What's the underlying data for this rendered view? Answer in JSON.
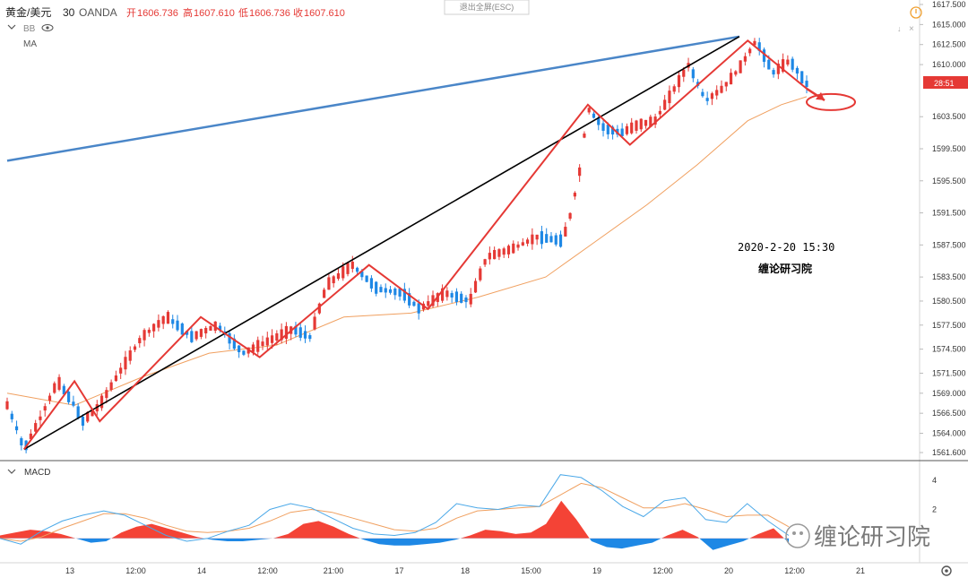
{
  "header": {
    "symbol": "黄金/美元",
    "interval": "30",
    "broker": "OANDA",
    "ohlc": [
      {
        "label": "开",
        "value": "1606.736"
      },
      {
        "label": "高",
        "value": "1607.610"
      },
      {
        "label": "低",
        "value": "1606.736"
      },
      {
        "label": "收",
        "value": "1607.610"
      }
    ],
    "indicator_bb": "BB",
    "indicator_ma": "MA",
    "exit_fullscreen": "退出全屏(ESC)"
  },
  "annotations": {
    "date_text": "2020-2-20 15:30",
    "studio_text": "缠论研习院",
    "watermark": "缠论研习院"
  },
  "price_badge": "28:51",
  "macd_label": "MACD",
  "colors": {
    "candle": "#e53935",
    "candle_down": "#1e88e5",
    "zigzag": "#e53935",
    "trendline_blue": "#4a86c8",
    "trendline_black": "#000000",
    "ma": "#f0a060",
    "macd_line": "#4aa8e8",
    "signal_line": "#f0a060",
    "hist_pos": "#f44336",
    "hist_neg": "#1e88e5"
  },
  "chart_data": [
    {
      "type": "candlestick",
      "title": "黄金/美元 30 OANDA",
      "y_axis_ticks": [
        "1617.500",
        "1615.000",
        "1612.500",
        "1610.000",
        "1603.500",
        "1599.500",
        "1595.500",
        "1591.500",
        "1587.500",
        "1583.500",
        "1580.500",
        "1577.500",
        "1574.500",
        "1571.500",
        "1569.000",
        "1566.500",
        "1564.000",
        "1561.600"
      ],
      "x_axis_ticks": [
        "13",
        "12:00",
        "14",
        "12:00",
        "21:00",
        "17",
        "18",
        "15:00",
        "19",
        "12:00",
        "20",
        "12:00",
        "21"
      ],
      "price_path": [
        {
          "x": 0,
          "y": 1567.5
        },
        {
          "x": 1,
          "y": 1565.0
        },
        {
          "x": 2,
          "y": 1562.0
        },
        {
          "x": 4,
          "y": 1566.0
        },
        {
          "x": 6,
          "y": 1570.5
        },
        {
          "x": 8,
          "y": 1567.5
        },
        {
          "x": 9,
          "y": 1565.5
        },
        {
          "x": 11,
          "y": 1567.5
        },
        {
          "x": 13,
          "y": 1571.0
        },
        {
          "x": 16,
          "y": 1576.0
        },
        {
          "x": 19,
          "y": 1578.5
        },
        {
          "x": 22,
          "y": 1576.0
        },
        {
          "x": 25,
          "y": 1577.5
        },
        {
          "x": 28,
          "y": 1574.0
        },
        {
          "x": 31,
          "y": 1575.5
        },
        {
          "x": 34,
          "y": 1577.0
        },
        {
          "x": 36,
          "y": 1576.0
        },
        {
          "x": 38,
          "y": 1582.5
        },
        {
          "x": 41,
          "y": 1585.0
        },
        {
          "x": 44,
          "y": 1582.0
        },
        {
          "x": 47,
          "y": 1581.5
        },
        {
          "x": 49,
          "y": 1579.5
        },
        {
          "x": 52,
          "y": 1581.5
        },
        {
          "x": 55,
          "y": 1580.5
        },
        {
          "x": 57,
          "y": 1586.0
        },
        {
          "x": 60,
          "y": 1587.0
        },
        {
          "x": 63,
          "y": 1588.5
        },
        {
          "x": 66,
          "y": 1588.0
        },
        {
          "x": 67,
          "y": 1591.5
        },
        {
          "x": 68,
          "y": 1596.5
        },
        {
          "x": 69,
          "y": 1604.5
        },
        {
          "x": 71,
          "y": 1602.0
        },
        {
          "x": 73,
          "y": 1601.5
        },
        {
          "x": 75,
          "y": 1602.5
        },
        {
          "x": 77,
          "y": 1603.0
        },
        {
          "x": 79,
          "y": 1606.5
        },
        {
          "x": 81,
          "y": 1610.0
        },
        {
          "x": 83,
          "y": 1605.5
        },
        {
          "x": 85,
          "y": 1607.0
        },
        {
          "x": 87,
          "y": 1609.5
        },
        {
          "x": 89,
          "y": 1613.0
        },
        {
          "x": 91,
          "y": 1609.0
        },
        {
          "x": 93,
          "y": 1610.5
        },
        {
          "x": 95,
          "y": 1607.6
        }
      ],
      "ma_line": [
        {
          "x": 0,
          "y": 1569.0
        },
        {
          "x": 8,
          "y": 1567.5
        },
        {
          "x": 16,
          "y": 1571.0
        },
        {
          "x": 24,
          "y": 1574.0
        },
        {
          "x": 32,
          "y": 1575.0
        },
        {
          "x": 40,
          "y": 1578.5
        },
        {
          "x": 48,
          "y": 1579.0
        },
        {
          "x": 56,
          "y": 1581.0
        },
        {
          "x": 64,
          "y": 1583.5
        },
        {
          "x": 70,
          "y": 1588.0
        },
        {
          "x": 76,
          "y": 1592.5
        },
        {
          "x": 82,
          "y": 1597.5
        },
        {
          "x": 88,
          "y": 1603.0
        },
        {
          "x": 92,
          "y": 1605.0
        },
        {
          "x": 95,
          "y": 1606.0
        }
      ],
      "zigzag": [
        {
          "x": 2,
          "y": 1562.0
        },
        {
          "x": 8,
          "y": 1570.5
        },
        {
          "x": 11,
          "y": 1565.5
        },
        {
          "x": 23,
          "y": 1578.5
        },
        {
          "x": 30,
          "y": 1573.5
        },
        {
          "x": 43,
          "y": 1585.0
        },
        {
          "x": 50,
          "y": 1579.5
        },
        {
          "x": 69,
          "y": 1605.0
        },
        {
          "x": 74,
          "y": 1600.0
        },
        {
          "x": 88,
          "y": 1613.0
        },
        {
          "x": 95,
          "y": 1607.0
        }
      ],
      "trendline_black": [
        {
          "x": 2,
          "y": 1562.0
        },
        {
          "x": 87,
          "y": 1613.5
        }
      ],
      "trendline_blue": [
        {
          "x": 0,
          "y": 1598.0
        },
        {
          "x": 87,
          "y": 1613.5
        }
      ]
    },
    {
      "type": "macd",
      "title": "MACD",
      "y_axis_ticks": [
        "4",
        "2"
      ],
      "histogram": [
        0.2,
        0.4,
        0.6,
        0.5,
        0.3,
        0.0,
        -0.3,
        -0.2,
        0.4,
        0.8,
        1.0,
        0.7,
        0.4,
        0.1,
        -0.1,
        -0.2,
        -0.2,
        -0.1,
        0.0,
        0.3,
        1.0,
        1.2,
        0.8,
        0.3,
        -0.1,
        -0.4,
        -0.5,
        -0.5,
        -0.4,
        -0.3,
        -0.1,
        0.2,
        0.6,
        0.5,
        0.3,
        0.4,
        1.0,
        2.6,
        1.3,
        -0.2,
        -0.6,
        -0.7,
        -0.5,
        -0.3,
        0.2,
        0.6,
        0.1,
        -0.8,
        -0.5,
        -0.2,
        0.3,
        0.7,
        -0.3
      ],
      "macd_line": [
        0.0,
        -0.4,
        0.5,
        1.2,
        1.6,
        1.9,
        1.6,
        0.9,
        0.2,
        -0.2,
        0.0,
        0.5,
        0.9,
        2.0,
        2.4,
        2.1,
        1.4,
        0.7,
        0.3,
        0.2,
        0.4,
        1.1,
        2.4,
        2.1,
        2.0,
        2.3,
        2.2,
        4.4,
        4.2,
        3.3,
        2.2,
        1.5,
        2.6,
        2.8,
        1.3,
        1.1,
        2.4,
        1.2,
        0.2
      ],
      "signal_line": [
        0.0,
        -0.2,
        0.1,
        0.7,
        1.2,
        1.7,
        1.7,
        1.4,
        0.9,
        0.5,
        0.4,
        0.5,
        0.7,
        1.2,
        1.8,
        2.0,
        1.8,
        1.4,
        1.0,
        0.6,
        0.5,
        0.7,
        1.4,
        1.9,
        2.0,
        2.1,
        2.2,
        3.0,
        3.8,
        3.5,
        2.8,
        2.1,
        2.1,
        2.4,
        2.0,
        1.5,
        1.6,
        1.6,
        0.8
      ]
    }
  ]
}
